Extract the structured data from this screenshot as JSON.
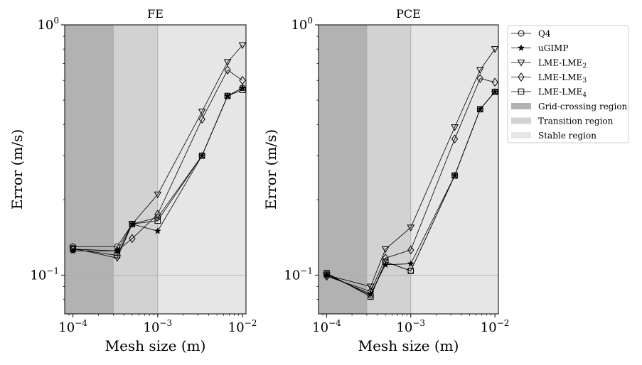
{
  "chart_data": [
    {
      "type": "line",
      "title": "FE",
      "xlabel": "Mesh size (m)",
      "ylabel": "Error (m/s)",
      "x_scale": "log",
      "y_scale": "log",
      "xlim": [
        8e-05,
        0.011
      ],
      "ylim": [
        0.07,
        1.0
      ],
      "x_ticks": [
        {
          "base": "10",
          "exp": "−4",
          "value": 0.0001
        },
        {
          "base": "10",
          "exp": "−3",
          "value": 0.001
        },
        {
          "base": "10",
          "exp": "−2",
          "value": 0.01
        }
      ],
      "y_ticks": [
        {
          "base": "10",
          "exp": "−1",
          "value": 0.1
        },
        {
          "base": "10",
          "exp": "0",
          "value": 1.0
        }
      ],
      "regions": [
        {
          "name": "Grid-crossing region",
          "x": [
            8e-05,
            0.0003
          ],
          "color": "#b2b2b2"
        },
        {
          "name": "Transition region",
          "x": [
            0.0003,
            0.001
          ],
          "color": "#d2d2d2"
        },
        {
          "name": "Stable region",
          "x": [
            0.001,
            0.011
          ],
          "color": "#e6e6e6"
        }
      ],
      "series": [
        {
          "name": "Q4",
          "marker": "circle",
          "x": [
            0.0001,
            0.000333,
            0.0005,
            0.001,
            0.00333,
            0.00667,
            0.01
          ],
          "y": [
            0.13,
            0.13,
            0.16,
            0.17,
            0.3,
            0.52,
            0.56
          ]
        },
        {
          "name": "uGIMP",
          "marker": "star",
          "x": [
            0.0001,
            0.000333,
            0.0005,
            0.001,
            0.00333,
            0.00667,
            0.01
          ],
          "y": [
            0.125,
            0.125,
            0.16,
            0.15,
            0.3,
            0.52,
            0.56
          ]
        },
        {
          "name": "LME-LME2",
          "marker": "triangle-down",
          "x": [
            0.0001,
            0.000333,
            0.0005,
            0.001,
            0.00333,
            0.00667,
            0.01
          ],
          "y": [
            0.128,
            0.117,
            0.16,
            0.21,
            0.45,
            0.71,
            0.83
          ]
        },
        {
          "name": "LME-LME3",
          "marker": "diamond",
          "x": [
            0.0001,
            0.000333,
            0.0005,
            0.001,
            0.00333,
            0.00667,
            0.01
          ],
          "y": [
            0.127,
            0.125,
            0.14,
            0.175,
            0.42,
            0.66,
            0.6
          ]
        },
        {
          "name": "LME-LME4",
          "marker": "square",
          "x": [
            0.0001,
            0.000333,
            0.0005,
            0.001,
            0.00333,
            0.00667,
            0.01
          ],
          "y": [
            0.127,
            0.12,
            0.16,
            0.165,
            0.3,
            0.52,
            0.55
          ]
        }
      ]
    },
    {
      "type": "line",
      "title": "PCE",
      "xlabel": "Mesh size (m)",
      "ylabel": "Error (m/s)",
      "x_scale": "log",
      "y_scale": "log",
      "xlim": [
        8e-05,
        0.011
      ],
      "ylim": [
        0.07,
        1.0
      ],
      "x_ticks": [
        {
          "base": "10",
          "exp": "−4",
          "value": 0.0001
        },
        {
          "base": "10",
          "exp": "−3",
          "value": 0.001
        },
        {
          "base": "10",
          "exp": "−2",
          "value": 0.01
        }
      ],
      "y_ticks": [
        {
          "base": "10",
          "exp": "−1",
          "value": 0.1
        },
        {
          "base": "10",
          "exp": "0",
          "value": 1.0
        }
      ],
      "regions": [
        {
          "name": "Grid-crossing region",
          "x": [
            8e-05,
            0.0003
          ],
          "color": "#b2b2b2"
        },
        {
          "name": "Transition region",
          "x": [
            0.0003,
            0.001
          ],
          "color": "#d2d2d2"
        },
        {
          "name": "Stable region",
          "x": [
            0.001,
            0.011
          ],
          "color": "#e6e6e6"
        }
      ],
      "series": [
        {
          "name": "Q4",
          "marker": "circle",
          "x": [
            0.0001,
            0.000333,
            0.0005,
            0.001,
            0.00333,
            0.00667,
            0.01
          ],
          "y": [
            0.101,
            0.083,
            0.113,
            0.104,
            0.25,
            0.46,
            0.54
          ]
        },
        {
          "name": "uGIMP",
          "marker": "star",
          "x": [
            0.0001,
            0.000333,
            0.0005,
            0.001,
            0.00333,
            0.00667,
            0.01
          ],
          "y": [
            0.1,
            0.084,
            0.11,
            0.111,
            0.25,
            0.46,
            0.54
          ]
        },
        {
          "name": "LME-LME2",
          "marker": "triangle-down",
          "x": [
            0.0001,
            0.000333,
            0.0005,
            0.001,
            0.00333,
            0.00667,
            0.01
          ],
          "y": [
            0.1,
            0.09,
            0.127,
            0.155,
            0.39,
            0.66,
            0.8
          ]
        },
        {
          "name": "LME-LME3",
          "marker": "diamond",
          "x": [
            0.0001,
            0.000333,
            0.0005,
            0.001,
            0.00333,
            0.00667,
            0.01
          ],
          "y": [
            0.099,
            0.086,
            0.117,
            0.126,
            0.35,
            0.61,
            0.59
          ]
        },
        {
          "name": "LME-LME4",
          "marker": "square",
          "x": [
            0.0001,
            0.000333,
            0.0005,
            0.001,
            0.00333,
            0.00667,
            0.01
          ],
          "y": [
            0.102,
            0.082,
            0.113,
            0.104,
            0.25,
            0.46,
            0.54
          ]
        }
      ]
    }
  ],
  "legend": {
    "placement": "right",
    "series_entries": [
      {
        "label": "Q4",
        "marker": "circle"
      },
      {
        "label": "uGIMP",
        "marker": "star"
      },
      {
        "label": "LME-LME",
        "sub": "2",
        "marker": "triangle-down"
      },
      {
        "label": "LME-LME",
        "sub": "3",
        "marker": "diamond"
      },
      {
        "label": "LME-LME",
        "sub": "4",
        "marker": "square"
      }
    ],
    "region_entries": [
      {
        "label": "Grid-crossing region",
        "color": "#b2b2b2"
      },
      {
        "label": "Transition region",
        "color": "#d2d2d2"
      },
      {
        "label": "Stable region",
        "color": "#e6e6e6"
      }
    ]
  },
  "colors": {
    "line": "#000000",
    "reference_gridline": "#a8a8a8"
  }
}
